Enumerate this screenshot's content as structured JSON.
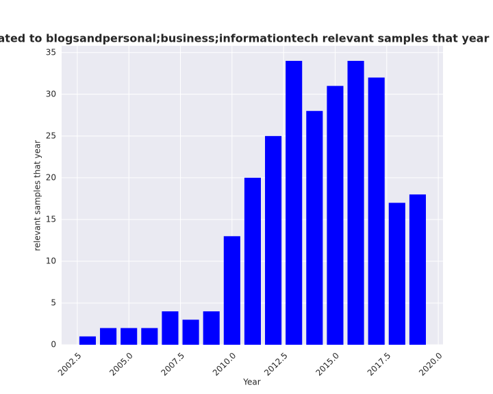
{
  "chart_data": {
    "type": "bar",
    "title": "s are related to blogsandpersonal;business;informationtech relevant samples that year in privac",
    "x_label": "Year",
    "y_label": "relevant samples that year",
    "x": [
      2003,
      2004,
      2005,
      2006,
      2007,
      2008,
      2009,
      2010,
      2011,
      2012,
      2013,
      2014,
      2015,
      2016,
      2017,
      2018,
      2019
    ],
    "values": [
      1,
      2,
      2,
      2,
      4,
      3,
      4,
      13,
      20,
      25,
      34,
      28,
      31,
      34,
      32,
      17,
      18
    ],
    "color": "#0000ff",
    "xlim": [
      2001.74,
      2020.23
    ],
    "xticks": [
      2002.5,
      {
        "value": 2005,
        "label": "2005.0"
      },
      2007.5,
      {
        "value": 2010,
        "label": "2010.0"
      },
      2012.5,
      {
        "value": 2015,
        "label": "2015.0"
      },
      2017.5,
      {
        "value": 2020,
        "label": "2020.0"
      }
    ],
    "ylim": [
      0,
      35.8
    ],
    "yticks": [
      0,
      5,
      10,
      15,
      20,
      25,
      30,
      35
    ],
    "grid": true
  }
}
